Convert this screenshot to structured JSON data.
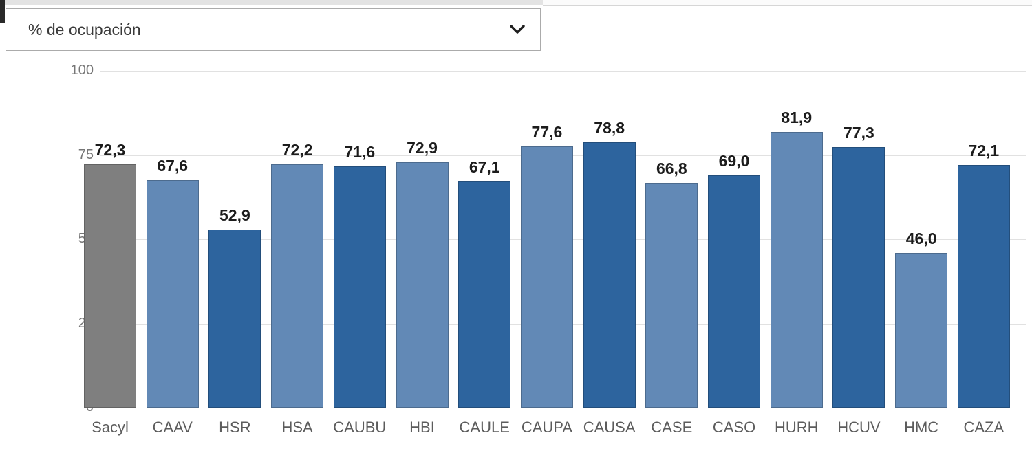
{
  "dropdown": {
    "selected_value": "% de ocupación",
    "chevron_icon": "chevron-down-icon"
  },
  "palette": {
    "gray": "#7f7f7f",
    "light": "#6289b6",
    "dark": "#2d649e",
    "grid_color": "#e1e1e1",
    "value_label_color": "#1c1c1c",
    "axis_label_color": "#5c5c5c",
    "tick_label_color": "#767676"
  },
  "chart_data": {
    "type": "bar",
    "title": "% de ocupación",
    "categories": [
      "Sacyl",
      "CAAV",
      "HSR",
      "HSA",
      "CAUBU",
      "HBI",
      "CAULE",
      "CAUPA",
      "CAUSA",
      "CASE",
      "CASO",
      "HURH",
      "HCUV",
      "HMC",
      "CAZA"
    ],
    "values": [
      72.3,
      67.6,
      52.9,
      72.2,
      71.6,
      72.9,
      67.1,
      77.6,
      78.8,
      66.8,
      69.0,
      81.9,
      77.3,
      46.0,
      72.1
    ],
    "labels": [
      "72,3",
      "67,6",
      "52,9",
      "72,2",
      "71,6",
      "72,9",
      "67,1",
      "77,6",
      "78,8",
      "66,8",
      "69,0",
      "81,9",
      "77,3",
      "46,0",
      "72,1"
    ],
    "shades": [
      "gray",
      "light",
      "dark",
      "light",
      "dark",
      "light",
      "dark",
      "light",
      "dark",
      "light",
      "dark",
      "light",
      "dark",
      "light",
      "dark"
    ],
    "xlabel": "",
    "ylabel": "",
    "ylim": [
      0,
      100
    ],
    "yticks": [
      0,
      25,
      50,
      75,
      100
    ],
    "ytick_labels": [
      "0",
      "25",
      "50",
      "75",
      "100"
    ],
    "grid": true,
    "legend": false,
    "value_labels_shown": true
  }
}
